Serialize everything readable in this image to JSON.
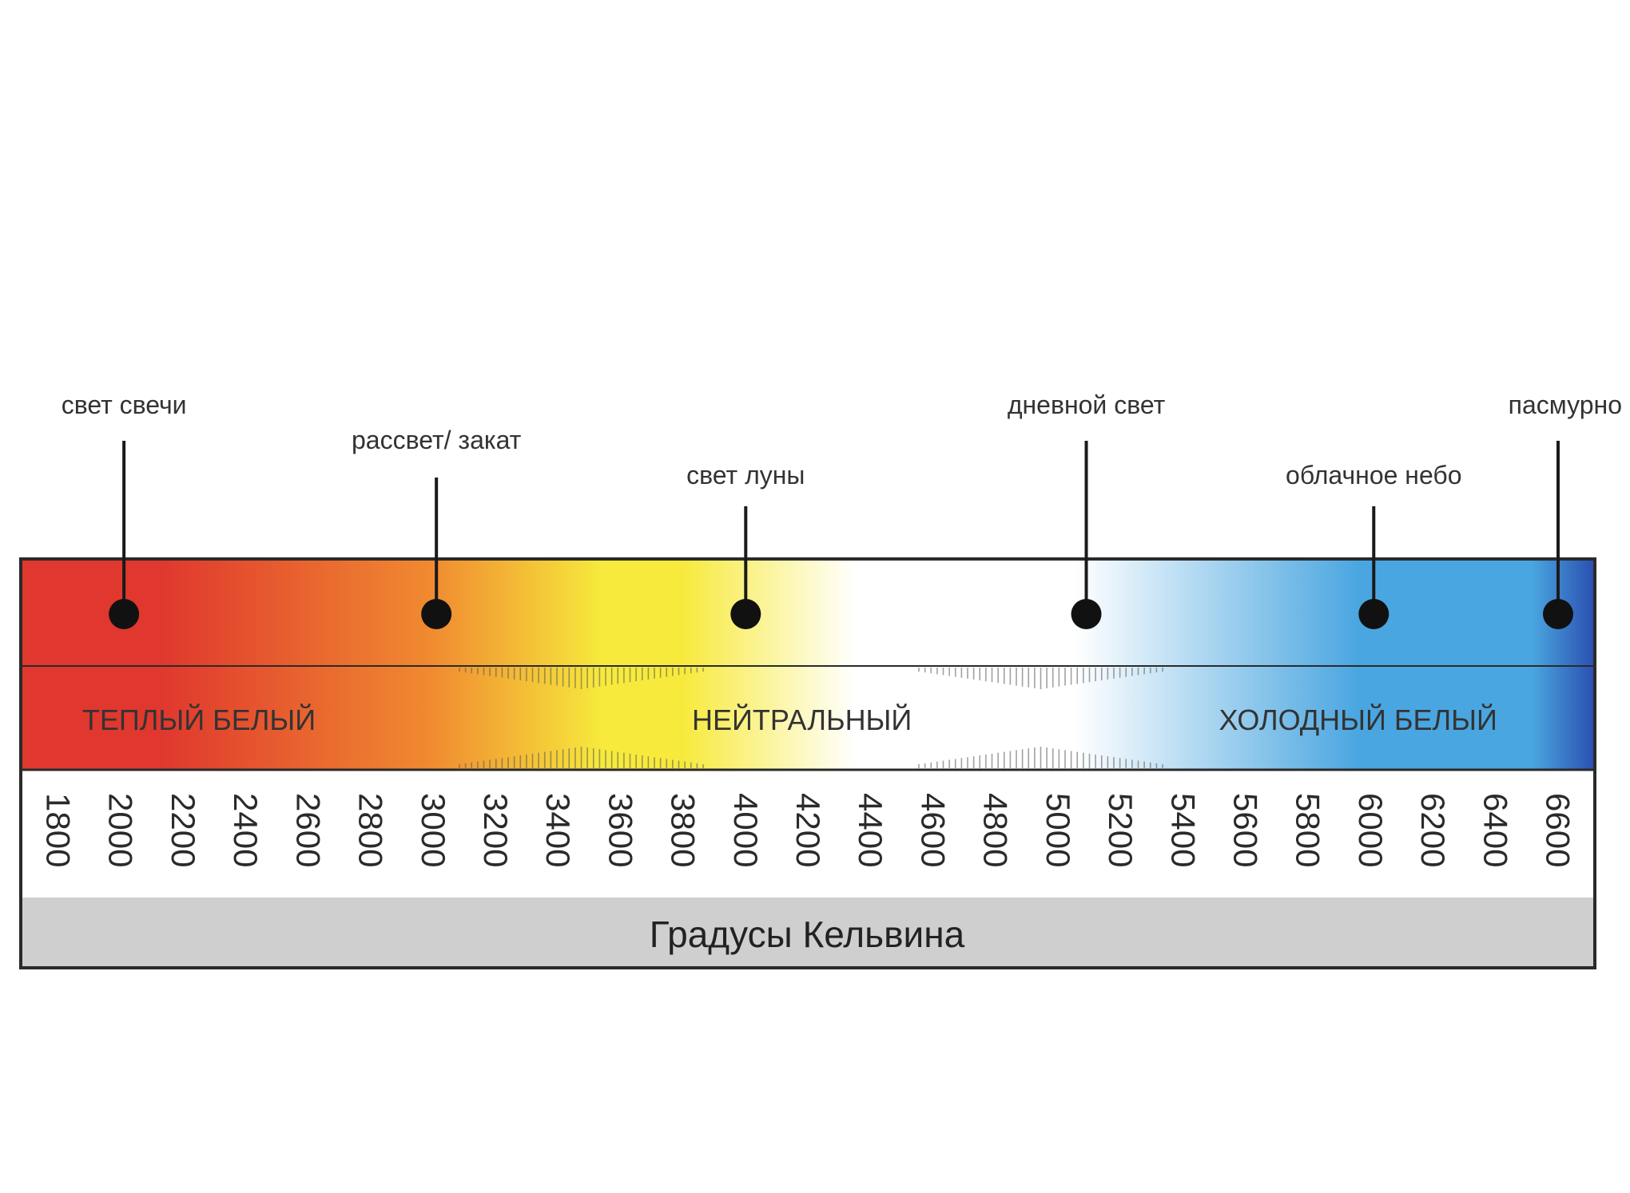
{
  "scale": {
    "unit_caption": "Градусы Кельвина",
    "min_k": 1800,
    "max_k": 6600,
    "ticks": [
      "1800",
      "2000",
      "2200",
      "2400",
      "2600",
      "2800",
      "3000",
      "3200",
      "3400",
      "3600",
      "3800",
      "4000",
      "4200",
      "4400",
      "4600",
      "4800",
      "5000",
      "5200",
      "5400",
      "5600",
      "5800",
      "6000",
      "6200",
      "6400",
      "6600"
    ]
  },
  "zones": [
    {
      "label": "ТЕПЛЫЙ БЕЛЫЙ",
      "center_k": 2250
    },
    {
      "label": "НЕЙТРАЛЬНЫЙ",
      "center_k": 4180
    },
    {
      "label": "ХОЛОДНЫЙ БЕЛЫЙ",
      "center_k": 5960
    }
  ],
  "markers": [
    {
      "label": "свет свечи",
      "kelvin": 2010,
      "tier": 1
    },
    {
      "label": "рассвет/ закат",
      "kelvin": 3010,
      "tier": 2
    },
    {
      "label": "свет луны",
      "kelvin": 4000,
      "tier": 3
    },
    {
      "label": "дневной свет",
      "kelvin": 5090,
      "tier": 1
    },
    {
      "label": "облачное небо",
      "kelvin": 6010,
      "tier": 3
    },
    {
      "label": "пасмурно",
      "kelvin": 6600,
      "tier": 1
    }
  ],
  "colors": {
    "warm": "#e0382e",
    "orange": "#f08a30",
    "yellow": "#f7ea3c",
    "white": "#ffffff",
    "sky": "#4aa6e0",
    "deep": "#2b4fb0",
    "outline": "#2a2a2a",
    "footer": "#cfcfcf"
  }
}
